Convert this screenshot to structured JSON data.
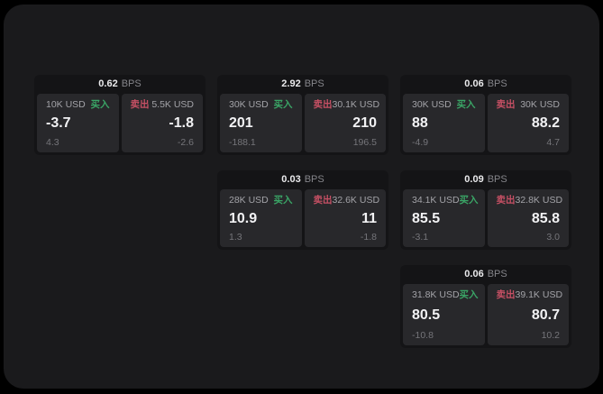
{
  "window": {
    "page_background": "#000000",
    "panel_background": "#1a1a1c"
  },
  "colors": {
    "buy_green": "#3aa566",
    "sell_red": "#c65064",
    "card_background": "#141416",
    "tile_background": "#28282b"
  },
  "cards": [
    {
      "bps": "0.62",
      "bps_unit": "BPS",
      "buy": {
        "amount": "10K USD",
        "tag": "买入",
        "price": "-3.7",
        "delta": "4.3"
      },
      "sell": {
        "tag": "卖出",
        "amount": "5.5K USD",
        "price": "-1.8",
        "delta": "-2.6"
      }
    },
    {
      "bps": "2.92",
      "bps_unit": "BPS",
      "buy": {
        "amount": "30K USD",
        "tag": "买入",
        "price": "201",
        "delta": "-188.1"
      },
      "sell": {
        "tag": "卖出",
        "amount": "30.1K USD",
        "price": "210",
        "delta": "196.5"
      }
    },
    {
      "bps": "0.06",
      "bps_unit": "BPS",
      "buy": {
        "amount": "30K USD",
        "tag": "买入",
        "price": "88",
        "delta": "-4.9"
      },
      "sell": {
        "tag": "卖出",
        "amount": "30K USD",
        "price": "88.2",
        "delta": "4.7"
      }
    },
    {
      "bps": "0.03",
      "bps_unit": "BPS",
      "buy": {
        "amount": "28K USD",
        "tag": "买入",
        "price": "10.9",
        "delta": "1.3"
      },
      "sell": {
        "tag": "卖出",
        "amount": "32.6K USD",
        "price": "11",
        "delta": "-1.8"
      }
    },
    {
      "bps": "0.09",
      "bps_unit": "BPS",
      "buy": {
        "amount": "34.1K USD",
        "tag": "买入",
        "price": "85.5",
        "delta": "-3.1"
      },
      "sell": {
        "tag": "卖出",
        "amount": "32.8K USD",
        "price": "85.8",
        "delta": "3.0"
      }
    },
    {
      "bps": "0.06",
      "bps_unit": "BPS",
      "buy": {
        "amount": "31.8K USD",
        "tag": "买入",
        "price": "80.5",
        "delta": "-10.8"
      },
      "sell": {
        "tag": "卖出",
        "amount": "39.1K USD",
        "price": "80.7",
        "delta": "10.2"
      }
    }
  ]
}
